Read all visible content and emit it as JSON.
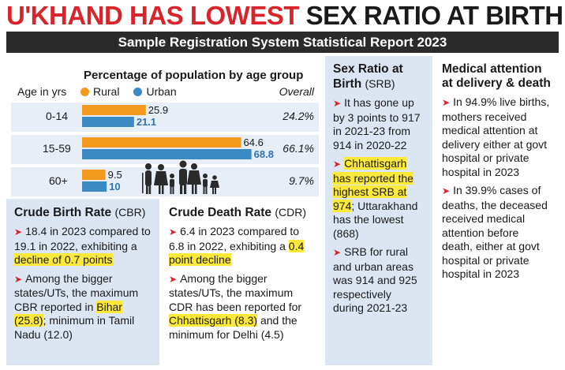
{
  "headline": {
    "red_part": "U'KHAND HAS LOWEST",
    "dark_part": "SEX RATIO AT BIRTH"
  },
  "banner": "Sample Registration System Statistical Report 2023",
  "colors": {
    "rural": "#f39a1e",
    "urban": "#3c8ac4",
    "urban_text": "#2f73b3",
    "accent": "#d8252b",
    "highlight": "#fde93a",
    "panel_blue": "#dce6f3"
  },
  "chart_data": {
    "type": "bar",
    "title": "Percentage of population by age group",
    "age_label": "Age in yrs",
    "overall_label": "Overall",
    "categories": [
      "0-14",
      "15-59",
      "60+"
    ],
    "series": [
      {
        "name": "Rural",
        "values": [
          25.9,
          64.6,
          9.5
        ]
      },
      {
        "name": "Urban",
        "values": [
          21.1,
          68.8,
          10
        ]
      }
    ],
    "value_labels": {
      "Rural": [
        "25.9",
        "64.6",
        "9.5"
      ],
      "Urban": [
        "21.1",
        "68.8",
        "10"
      ]
    },
    "overall": [
      "24.2%",
      "66.1%",
      "9.7%"
    ],
    "orientation": "horizontal"
  },
  "cbr": {
    "title": "Crude Birth Rate",
    "abbr": "(CBR)",
    "b1_pre": "18.4 in 2023 compared to 19.1 in 2022, exhibiting a ",
    "b1_hl": "decline of 0.7 points",
    "b2_pre": "Among the bigger states/UTs, the maximum CBR reported in ",
    "b2_hl": "Bihar (25.8)",
    "b2_post": "; minimum in Tamil Nadu (12.0)"
  },
  "cdr": {
    "title": "Crude Death Rate",
    "abbr": "(CDR)",
    "b1_pre": "6.4 in 2023 compared to 6.8 in 2022, exhibiting a ",
    "b1_hl": "0.4 point decline",
    "b2_pre": "Among the bigger states/UTs, the maximum CDR has been reported for ",
    "b2_hl": "Chhattisgarh (8.3)",
    "b2_post": " and the minimum for Delhi (4.5)"
  },
  "srb": {
    "title": "Sex Ratio at Birth",
    "abbr": "(SRB)",
    "b1": "It has gone up by 3 points to 917 in 2021-23 from 914 in 2020-22",
    "b2_hl": "Chhattisgarh has reported the highest SRB at 974",
    "b2_post": "; Uttarakhand has the lowest (868)",
    "b3": "SRB for rural and urban areas was 914 and 925 respectively during 2021-23"
  },
  "med": {
    "title": "Medical attention at delivery & death",
    "b1": "In 94.9% live births, mothers received medical attention at delivery either at govt hospital or private hospital in 2023",
    "b2": "In 39.9% cases of deaths, the deceased received medical attention before death, either at govt hospital or private hospital in 2023"
  },
  "icons": {
    "family": "family-silhouette-icon",
    "bullet": "arrow-bullet-icon"
  }
}
